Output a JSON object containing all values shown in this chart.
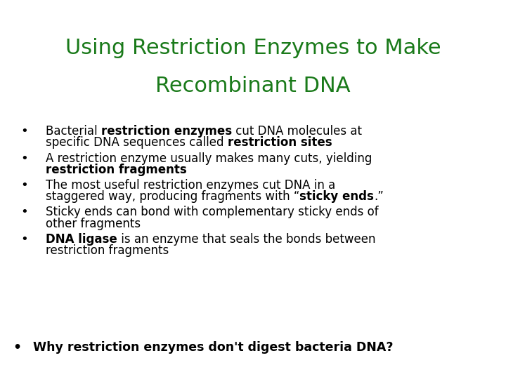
{
  "title_line1": "Using Restriction Enzymes to Make",
  "title_line2": "Recombinant DNA",
  "title_color": "#1a7a1a",
  "background_color": "#ffffff",
  "title_fontsize": 22,
  "body_fontsize": 12.0,
  "question_fontsize": 12.5,
  "text_color": "#000000",
  "bullet_marker": "•",
  "bullets": [
    [
      [
        {
          "text": "Bacterial ",
          "bold": false
        },
        {
          "text": "restriction enzymes",
          "bold": true
        },
        {
          "text": " cut DNA molecules at",
          "bold": false
        }
      ],
      [
        {
          "text": "specific DNA sequences called ",
          "bold": false
        },
        {
          "text": "restriction sites",
          "bold": true
        }
      ]
    ],
    [
      [
        {
          "text": "A restriction enzyme usually makes many cuts, yielding",
          "bold": false
        }
      ],
      [
        {
          "text": "restriction fragments",
          "bold": true
        }
      ]
    ],
    [
      [
        {
          "text": "The most useful restriction enzymes cut DNA in a",
          "bold": false
        }
      ],
      [
        {
          "text": "staggered way, producing fragments with “",
          "bold": false
        },
        {
          "text": "sticky ends",
          "bold": true
        },
        {
          "text": ".”",
          "bold": false
        }
      ]
    ],
    [
      [
        {
          "text": "Sticky ends can bond with complementary sticky ends of",
          "bold": false
        }
      ],
      [
        {
          "text": "other fragments",
          "bold": false
        }
      ]
    ],
    [
      [
        {
          "text": "DNA ligase",
          "bold": true
        },
        {
          "text": " is an enzyme that seals the bonds between",
          "bold": false
        }
      ],
      [
        {
          "text": "restriction fragments",
          "bold": false
        }
      ]
    ]
  ],
  "question_lines": [
    [
      {
        "text": "Why restriction enzymes don't digest bacteria DNA?",
        "bold": true
      }
    ]
  ]
}
